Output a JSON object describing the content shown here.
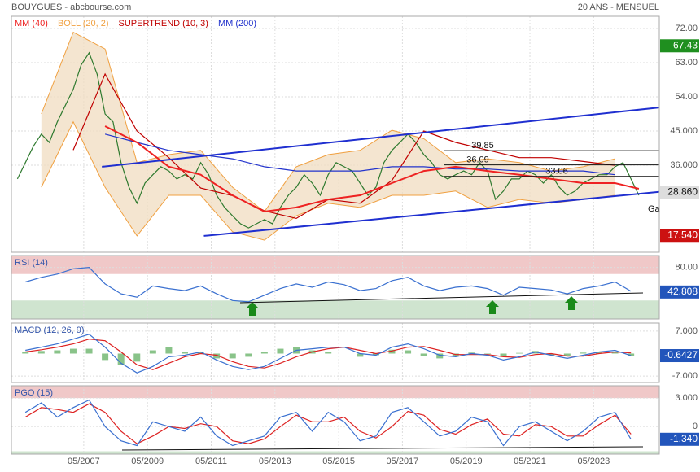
{
  "header": {
    "left": "BOUYGUES - abcbourse.com",
    "right": "20 ANS - MENSUEL"
  },
  "chart_data": [
    {
      "type": "line",
      "xlim": [
        2005.06,
        2025.39
      ],
      "ylim": [
        13.1,
        75.2
      ],
      "yticks": [
        {
          "value": 72,
          "label": "72.00"
        },
        {
          "value": 63,
          "label": "63.00"
        },
        {
          "value": 54,
          "label": "54.00"
        },
        {
          "value": 45,
          "label": "45.000"
        },
        {
          "value": 36,
          "label": "36.000"
        }
      ],
      "series": [
        {
          "name": "BOLL (20, 2)",
          "color": "#f0a040",
          "x": [
            2006,
            2007,
            2008,
            2009,
            2010,
            2011,
            2012,
            2013,
            2014,
            2015,
            2016,
            2017,
            2018,
            2019,
            2020,
            2021,
            2022,
            2023,
            2024
          ],
          "values": [
            49.5,
            71,
            66.6,
            36.7,
            38.8,
            39.9,
            30.2,
            23.8,
            35.6,
            38.8,
            39.9,
            45.2,
            43,
            36.7,
            37.7,
            36.7,
            34.5,
            35.6,
            37.7
          ],
          "lower": [
            30.2,
            47.4,
            30.2,
            17.4,
            28.1,
            28.1,
            18.5,
            16.3,
            22.7,
            26,
            24.9,
            28.1,
            28.1,
            29.2,
            24.9,
            27,
            26,
            27,
            28.1
          ]
        },
        {
          "color": "#2f7a2f",
          "x": [
            2005.25,
            2005.5,
            2005.75,
            2006,
            2006.25,
            2006.5,
            2006.75,
            2007,
            2007.25,
            2007.5,
            2007.75,
            2008,
            2008.25,
            2008.5,
            2008.75,
            2009,
            2009.25,
            2009.5,
            2009.75,
            2010,
            2010.25,
            2010.5,
            2010.75,
            2011,
            2011.25,
            2011.5,
            2011.75,
            2012,
            2012.25,
            2012.5,
            2012.75,
            2013,
            2013.25,
            2013.5,
            2013.75,
            2014,
            2014.25,
            2014.5,
            2014.75,
            2015,
            2015.25,
            2015.5,
            2015.75,
            2016,
            2016.25,
            2016.5,
            2016.75,
            2017,
            2017.25,
            2017.5,
            2017.75,
            2018,
            2018.25,
            2018.5,
            2018.75,
            2019,
            2019.25,
            2019.5,
            2019.75,
            2020,
            2020.25,
            2020.5,
            2020.75,
            2021,
            2021.25,
            2021.5,
            2021.75,
            2022,
            2022.25,
            2022.5,
            2022.75,
            2023,
            2023.25,
            2023.5,
            2023.75,
            2024,
            2024.25,
            2024.5,
            2024.75
          ],
          "values": [
            32.4,
            36.7,
            41,
            44.2,
            42,
            47.4,
            51.7,
            56,
            62.4,
            65.6,
            60,
            49.5,
            47.4,
            36.7,
            30.2,
            26,
            31.3,
            33.5,
            35.6,
            34.5,
            32.4,
            33.5,
            32.4,
            36.7,
            33.5,
            28.1,
            24.9,
            22.7,
            20.6,
            19.5,
            20.6,
            21.7,
            20.6,
            24.9,
            28.1,
            30.2,
            33.5,
            31.3,
            28.1,
            33.5,
            36.7,
            35.6,
            34.5,
            31.3,
            28.1,
            30.2,
            36.7,
            39.9,
            42,
            44.2,
            42,
            38.8,
            36.7,
            33.5,
            32.4,
            33.5,
            34.5,
            33.5,
            36.7,
            34.5,
            27,
            29.2,
            32.4,
            32.4,
            34.5,
            33.5,
            31.3,
            33.5,
            30.2,
            28.1,
            29.2,
            31.3,
            32.4,
            33.5,
            33.5,
            35.6,
            36.7,
            32.4,
            28.1
          ]
        },
        {
          "name": "SUPERTREND (10, 3)",
          "color": "#c00000",
          "x": [
            2007,
            2008,
            2009,
            2010,
            2011,
            2012,
            2013,
            2014,
            2015,
            2016,
            2017,
            2018,
            2019,
            2020,
            2021,
            2022,
            2023,
            2024
          ],
          "values": [
            40,
            60,
            45,
            38,
            30,
            28,
            24,
            22,
            27,
            26,
            32,
            45,
            42,
            40,
            38,
            38,
            37,
            36
          ]
        },
        {
          "name": "MM (200)",
          "color": "#2233cc",
          "x": [
            2008,
            2009,
            2010,
            2011,
            2012,
            2013,
            2014,
            2015,
            2016,
            2017,
            2018,
            2019,
            2020,
            2021,
            2022,
            2023,
            2024
          ],
          "values": [
            44.2,
            42,
            39.9,
            38.8,
            37.7,
            35.6,
            34.5,
            34.5,
            34.5,
            35.6,
            35.6,
            35,
            35,
            34.5,
            34.5,
            34.5,
            33.5
          ]
        },
        {
          "name": "MM (40)",
          "color": "#ee2222",
          "x": [
            2008,
            2009,
            2010,
            2011,
            2012,
            2013,
            2014,
            2015,
            2016,
            2017,
            2018,
            2019,
            2020,
            2021,
            2022,
            2023,
            2024,
            2024.75
          ],
          "values": [
            46.3,
            42,
            35.6,
            33.5,
            28.1,
            23.8,
            24.9,
            27,
            28.1,
            31.3,
            34.5,
            35.6,
            34.5,
            33.5,
            32.4,
            31.3,
            31.3,
            29.8
          ]
        }
      ],
      "trendlines": [
        {
          "x": [
            2007.9,
            2025.39
          ],
          "values": [
            35.6,
            51.2
          ]
        },
        {
          "x": [
            2011.1,
            2025.39
          ],
          "values": [
            17.4,
            29
          ]
        }
      ],
      "levels": [
        39.85,
        36.09,
        33.06
      ],
      "annotations": [
        "Ga"
      ],
      "badges": [
        {
          "value": 67.43,
          "label": "67.43",
          "color": "#1f8f1f"
        },
        {
          "value": 28.86,
          "label": "28.860",
          "color": "#dddddd"
        },
        {
          "value": 17.54,
          "label": "17.540",
          "color": "#cc1111"
        }
      ]
    },
    {
      "type": "line",
      "title": "RSI (14)",
      "xlim": [
        2005.06,
        2025.39
      ],
      "ylim": [
        2,
        98
      ],
      "yticks": [
        {
          "value": 80,
          "label": "80.00"
        }
      ],
      "zones": [
        {
          "above": 70,
          "color": "#f0c8c8"
        },
        {
          "below": 30,
          "color": "#cfe4cf"
        }
      ],
      "series": [
        {
          "color": "#3a70d0",
          "x": [
            2005.5,
            2006,
            2006.5,
            2007,
            2007.5,
            2008,
            2008.5,
            2009,
            2009.5,
            2010,
            2010.5,
            2011,
            2011.5,
            2012,
            2012.5,
            2013,
            2013.5,
            2014,
            2014.5,
            2015,
            2015.5,
            2016,
            2016.5,
            2017,
            2017.5,
            2018,
            2018.5,
            2019,
            2019.5,
            2020,
            2020.5,
            2021,
            2021.5,
            2022,
            2022.5,
            2023,
            2023.5,
            2024,
            2024.5
          ],
          "values": [
            58,
            65,
            70,
            78,
            80,
            55,
            40,
            35,
            52,
            48,
            45,
            52,
            40,
            30,
            28,
            38,
            48,
            55,
            50,
            58,
            54,
            45,
            48,
            60,
            65,
            52,
            45,
            50,
            52,
            48,
            38,
            50,
            48,
            46,
            40,
            48,
            52,
            58,
            44
          ]
        }
      ],
      "badges": [
        {
          "value": 42.808,
          "label": "42.808",
          "color": "#2255bb"
        }
      ]
    },
    {
      "type": "line",
      "title": "MACD (12, 26, 9)",
      "xlim": [
        2005.06,
        2025.39
      ],
      "ylim": [
        -9,
        9.5
      ],
      "yticks": [
        {
          "value": 7,
          "label": "7.000"
        },
        {
          "value": -7,
          "label": "-7.000"
        }
      ],
      "series": [
        {
          "type": "bars",
          "color": "#6cb46c",
          "x": [
            2005.5,
            2006,
            2006.5,
            2007,
            2007.5,
            2008,
            2008.5,
            2009,
            2009.5,
            2010,
            2010.5,
            2011,
            2011.5,
            2012,
            2012.5,
            2013,
            2013.5,
            2014,
            2014.5,
            2015,
            2015.5,
            2016,
            2016.5,
            2017,
            2017.5,
            2018,
            2018.5,
            2019,
            2019.5,
            2020,
            2020.5,
            2021,
            2021.5,
            2022,
            2022.5,
            2023,
            2023.5,
            2024,
            2024.5
          ],
          "values": [
            0.5,
            0.8,
            1,
            1.5,
            1.5,
            -2,
            -3.5,
            -2.5,
            1,
            2,
            0.5,
            0.5,
            -1.5,
            -1.5,
            -1,
            0.5,
            1.5,
            2,
            1,
            0.5,
            0,
            -1,
            -0.5,
            1.2,
            1,
            -0.7,
            -1.5,
            -0.7,
            0.3,
            -0.2,
            -1,
            0.2,
            0.8,
            -0.5,
            -0.7,
            0.3,
            0.5,
            0.5,
            -0.84
          ]
        },
        {
          "color": "#dd2222",
          "x": [
            2005.5,
            2006,
            2006.5,
            2007,
            2007.5,
            2008,
            2008.5,
            2009,
            2009.5,
            2010,
            2010.5,
            2011,
            2011.5,
            2012,
            2012.5,
            2013,
            2013.5,
            2014,
            2014.5,
            2015,
            2015.5,
            2016,
            2016.5,
            2017,
            2017.5,
            2018,
            2018.5,
            2019,
            2019.5,
            2020,
            2020.5,
            2021,
            2021.5,
            2022,
            2022.5,
            2023,
            2023.5,
            2024,
            2024.5
          ],
          "values": [
            0.5,
            1.2,
            2,
            3,
            4.5,
            4,
            0.5,
            -3.5,
            -5,
            -3,
            -1,
            0,
            -0.5,
            -2.5,
            -4,
            -4.5,
            -3,
            -1,
            0.5,
            1.5,
            2,
            1,
            0,
            0.8,
            2,
            2.2,
            1,
            -0.3,
            -0.3,
            -0.3,
            -1,
            -1.2,
            -0.3,
            0,
            -0.8,
            -0.8,
            0,
            0.5,
            0.2
          ]
        },
        {
          "color": "#3a70d0",
          "x": [
            2005.5,
            2006,
            2006.5,
            2007,
            2007.5,
            2008,
            2008.5,
            2009,
            2009.5,
            2010,
            2010.5,
            2011,
            2011.5,
            2012,
            2012.5,
            2013,
            2013.5,
            2014,
            2014.5,
            2015,
            2015.5,
            2016,
            2016.5,
            2017,
            2017.5,
            2018,
            2018.5,
            2019,
            2019.5,
            2020,
            2020.5,
            2021,
            2021.5,
            2022,
            2022.5,
            2023,
            2023.5,
            2024,
            2024.5
          ],
          "values": [
            1,
            2,
            3,
            4.5,
            6,
            2,
            -3,
            -6,
            -4,
            -1,
            -0.5,
            0.5,
            -2,
            -4,
            -5,
            -4,
            -1.5,
            1,
            1.5,
            2,
            2,
            0,
            -0.5,
            2,
            3,
            1.5,
            -0.5,
            -1,
            0,
            -0.5,
            -2,
            -1,
            0.5,
            -0.5,
            -1.5,
            -0.5,
            0.5,
            1,
            -0.6427
          ]
        }
      ],
      "badges": [
        {
          "value": -0.6427,
          "label": "-0.6427",
          "color": "#2255bb"
        }
      ]
    },
    {
      "type": "line",
      "title": "PGO (15)",
      "xlim": [
        2005.06,
        2025.39
      ],
      "ylim": [
        -2.9,
        4.3
      ],
      "yticks": [
        {
          "value": 3,
          "label": "3.000"
        },
        0
      ],
      "xticks": [
        {
          "value": 2007.33,
          "label": "05/2007"
        },
        {
          "value": 2009.33,
          "label": "05/2009"
        },
        {
          "value": 2011.33,
          "label": "05/2011"
        },
        {
          "value": 2013.33,
          "label": "05/2013"
        },
        {
          "value": 2015.33,
          "label": "05/2015"
        },
        {
          "value": 2017.33,
          "label": "05/2017"
        },
        {
          "value": 2019.33,
          "label": "05/2019"
        },
        {
          "value": 2021.33,
          "label": "05/2021"
        },
        {
          "value": 2023.33,
          "label": "05/2023"
        }
      ],
      "zones": [
        {
          "above": 3,
          "color": "#f0c8c8"
        },
        {
          "below": -2.6,
          "color": "#cfe4cf"
        }
      ],
      "series": [
        {
          "color": "#dd2222",
          "x": [
            2005.5,
            2006,
            2006.5,
            2007,
            2007.5,
            2008,
            2008.5,
            2009,
            2009.5,
            2010,
            2010.5,
            2011,
            2011.5,
            2012,
            2012.5,
            2013,
            2013.5,
            2014,
            2014.5,
            2015,
            2015.5,
            2016,
            2016.5,
            2017,
            2017.5,
            2018,
            2018.5,
            2019,
            2019.5,
            2020,
            2020.5,
            2021,
            2021.5,
            2022,
            2022.5,
            2023,
            2023.5,
            2024,
            2024.5
          ],
          "values": [
            1,
            2,
            1.8,
            1.5,
            2.4,
            1.5,
            -0.5,
            -1.8,
            -1,
            0,
            -0.2,
            0.3,
            0,
            -1.5,
            -1.8,
            -1.3,
            0,
            1.2,
            0.5,
            0.5,
            1,
            -0.5,
            -1.2,
            0,
            1.6,
            1.2,
            -0.3,
            -0.8,
            0.2,
            0.8,
            -0.8,
            -1,
            0.2,
            0,
            -1,
            -1,
            0.2,
            1.2,
            -0.8
          ]
        },
        {
          "color": "#3a70d0",
          "x": [
            2005.5,
            2006,
            2006.5,
            2007,
            2007.5,
            2008,
            2008.5,
            2009,
            2009.5,
            2010,
            2010.5,
            2011,
            2011.5,
            2012,
            2012.5,
            2013,
            2013.5,
            2014,
            2014.5,
            2015,
            2015.5,
            2016,
            2016.5,
            2017,
            2017.5,
            2018,
            2018.5,
            2019,
            2019.5,
            2020,
            2020.5,
            2021,
            2021.5,
            2022,
            2022.5,
            2023,
            2023.5,
            2024,
            2024.5
          ],
          "values": [
            1.5,
            2.5,
            1,
            2,
            2.8,
            0,
            -1.5,
            -2,
            0.5,
            0,
            -0.5,
            1,
            -1,
            -2,
            -1.5,
            -1,
            1,
            1.5,
            -0.5,
            1.5,
            0.5,
            -1.5,
            -1,
            1.5,
            2,
            0.5,
            -1,
            -0.5,
            1,
            0.5,
            -2,
            0,
            0.5,
            -0.5,
            -1.5,
            -0.5,
            1,
            1.5,
            -1.34
          ]
        }
      ],
      "badges": [
        {
          "value": -1.34,
          "label": "-1.340",
          "color": "#2255bb"
        }
      ]
    }
  ]
}
